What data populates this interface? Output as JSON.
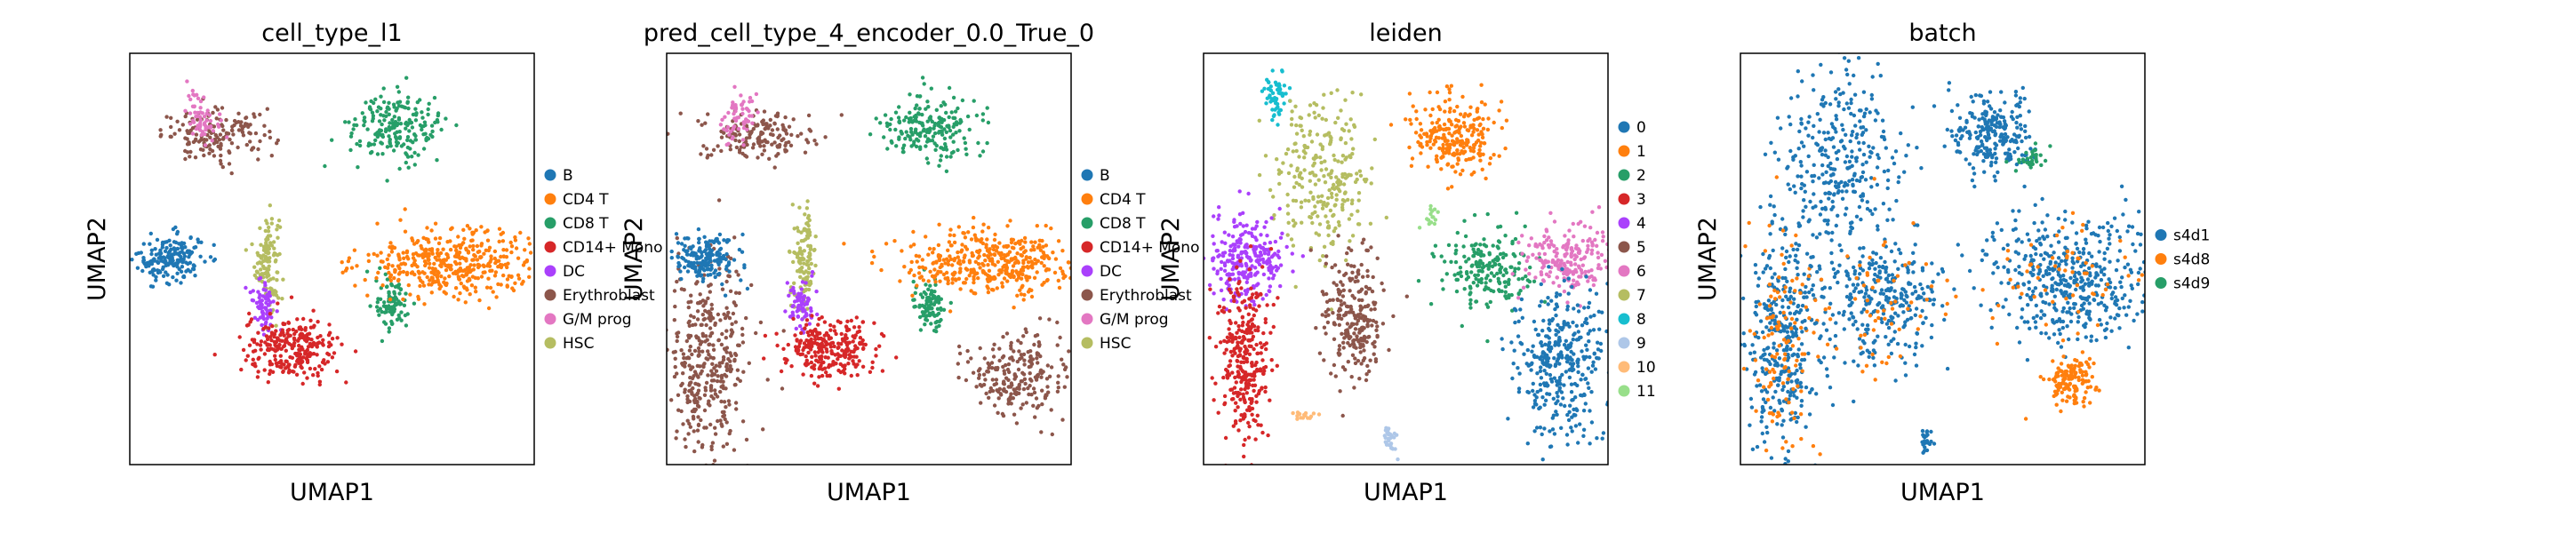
{
  "chart_data": [
    {
      "type": "scatter",
      "title": "cell_type_l1",
      "xlabel": "UMAP1",
      "ylabel": "UMAP2",
      "xlim": [
        0,
        100
      ],
      "ylim": [
        0,
        100
      ],
      "grid": false,
      "legend_position": "right",
      "legend": [
        {
          "label": "B",
          "color": "#1f77b4"
        },
        {
          "label": "CD4 T",
          "color": "#ff7f0e"
        },
        {
          "label": "CD8 T",
          "color": "#279e68"
        },
        {
          "label": "CD14+ Mono",
          "color": "#d62728"
        },
        {
          "label": "DC",
          "color": "#aa40fc"
        },
        {
          "label": "Erythroblast",
          "color": "#8c564b"
        },
        {
          "label": "G/M prog",
          "color": "#e377c2"
        },
        {
          "label": "HSC",
          "color": "#b5bd61"
        }
      ],
      "clusters": [
        {
          "category": "HSC",
          "x": 34,
          "y": 50,
          "spread": [
            1.5,
            6
          ],
          "n": 120
        },
        {
          "category": "Erythroblast",
          "x": 22,
          "y": 80,
          "spread": [
            7,
            3
          ],
          "n": 160
        },
        {
          "category": "G/M prog",
          "x": 18,
          "y": 85,
          "spread": [
            2,
            3
          ],
          "n": 60
        },
        {
          "category": "B",
          "x": 10,
          "y": 50,
          "spread": [
            4,
            3
          ],
          "n": 180
        },
        {
          "category": "DC",
          "x": 33,
          "y": 39,
          "spread": [
            1.5,
            3
          ],
          "n": 70
        },
        {
          "category": "CD14+ Mono",
          "x": 40,
          "y": 28,
          "spread": [
            6,
            4
          ],
          "n": 260
        },
        {
          "category": "CD8 T",
          "x": 65,
          "y": 39,
          "spread": [
            2,
            3
          ],
          "n": 90
        },
        {
          "category": "CD4 T",
          "x": 80,
          "y": 49,
          "spread": [
            11,
            4
          ],
          "n": 420
        },
        {
          "category": "CD8 T",
          "x": 66,
          "y": 82,
          "spread": [
            6,
            4
          ],
          "n": 200
        }
      ]
    },
    {
      "type": "scatter",
      "title": "pred_cell_type_4_encoder_0.0_True_0",
      "xlabel": "UMAP1",
      "ylabel": "UMAP2",
      "xlim": [
        0,
        100
      ],
      "ylim": [
        0,
        100
      ],
      "grid": false,
      "legend_position": "right",
      "legend": [
        {
          "label": "B",
          "color": "#1f77b4"
        },
        {
          "label": "CD4 T",
          "color": "#ff7f0e"
        },
        {
          "label": "CD8 T",
          "color": "#279e68"
        },
        {
          "label": "CD14+ Mono",
          "color": "#d62728"
        },
        {
          "label": "DC",
          "color": "#aa40fc"
        },
        {
          "label": "Erythroblast",
          "color": "#8c564b"
        },
        {
          "label": "G/M prog",
          "color": "#e377c2"
        },
        {
          "label": "HSC",
          "color": "#b5bd61"
        }
      ],
      "clusters": [
        {
          "category": "HSC",
          "x": 34,
          "y": 50,
          "spread": [
            1.5,
            6
          ],
          "n": 120
        },
        {
          "category": "Erythroblast",
          "x": 22,
          "y": 80,
          "spread": [
            7,
            3
          ],
          "n": 160
        },
        {
          "category": "Erythroblast",
          "x": 10,
          "y": 25,
          "spread": [
            5,
            12
          ],
          "n": 380
        },
        {
          "category": "Erythroblast",
          "x": 87,
          "y": 22,
          "spread": [
            6,
            5
          ],
          "n": 220
        },
        {
          "category": "G/M prog",
          "x": 18,
          "y": 85,
          "spread": [
            2,
            3
          ],
          "n": 60
        },
        {
          "category": "B",
          "x": 10,
          "y": 50,
          "spread": [
            4,
            3
          ],
          "n": 180
        },
        {
          "category": "DC",
          "x": 33,
          "y": 39,
          "spread": [
            1.5,
            3
          ],
          "n": 70
        },
        {
          "category": "CD14+ Mono",
          "x": 40,
          "y": 28,
          "spread": [
            6,
            4
          ],
          "n": 260
        },
        {
          "category": "CD8 T",
          "x": 65,
          "y": 39,
          "spread": [
            2,
            3
          ],
          "n": 90
        },
        {
          "category": "CD4 T",
          "x": 80,
          "y": 49,
          "spread": [
            11,
            4
          ],
          "n": 420
        },
        {
          "category": "CD8 T",
          "x": 66,
          "y": 82,
          "spread": [
            6,
            4
          ],
          "n": 200
        }
      ]
    },
    {
      "type": "scatter",
      "title": "leiden",
      "xlabel": "UMAP1",
      "ylabel": "UMAP2",
      "xlim": [
        0,
        100
      ],
      "ylim": [
        0,
        100
      ],
      "grid": false,
      "legend_position": "right",
      "legend": [
        {
          "label": "0",
          "color": "#1f77b4"
        },
        {
          "label": "1",
          "color": "#ff7f0e"
        },
        {
          "label": "2",
          "color": "#279e68"
        },
        {
          "label": "3",
          "color": "#d62728"
        },
        {
          "label": "4",
          "color": "#aa40fc"
        },
        {
          "label": "5",
          "color": "#8c564b"
        },
        {
          "label": "6",
          "color": "#e377c2"
        },
        {
          "label": "7",
          "color": "#b5bd61"
        },
        {
          "label": "8",
          "color": "#17becf"
        },
        {
          "label": "9",
          "color": "#aec7e8"
        },
        {
          "label": "10",
          "color": "#ffbb78"
        },
        {
          "label": "11",
          "color": "#98df8a"
        }
      ],
      "clusters": [
        {
          "category": "8",
          "x": 18,
          "y": 90,
          "spread": [
            1.5,
            3
          ],
          "n": 60
        },
        {
          "category": "7",
          "x": 30,
          "y": 70,
          "spread": [
            6,
            10
          ],
          "n": 260
        },
        {
          "category": "4",
          "x": 10,
          "y": 50,
          "spread": [
            5,
            5
          ],
          "n": 260
        },
        {
          "category": "3",
          "x": 10,
          "y": 25,
          "spread": [
            3,
            10
          ],
          "n": 320
        },
        {
          "category": "5",
          "x": 37,
          "y": 35,
          "spread": [
            4,
            8
          ],
          "n": 240
        },
        {
          "category": "1",
          "x": 62,
          "y": 80,
          "spread": [
            5,
            5
          ],
          "n": 240
        },
        {
          "category": "2",
          "x": 70,
          "y": 47,
          "spread": [
            6,
            5
          ],
          "n": 200
        },
        {
          "category": "6",
          "x": 90,
          "y": 50,
          "spread": [
            6,
            4
          ],
          "n": 220
        },
        {
          "category": "0",
          "x": 88,
          "y": 25,
          "spread": [
            6,
            10
          ],
          "n": 360
        },
        {
          "category": "9",
          "x": 46,
          "y": 6,
          "spread": [
            0.8,
            1.5
          ],
          "n": 30
        },
        {
          "category": "10",
          "x": 24,
          "y": 12,
          "spread": [
            1.5,
            0.5
          ],
          "n": 15
        },
        {
          "category": "11",
          "x": 56,
          "y": 60,
          "spread": [
            1.5,
            1.5
          ],
          "n": 15
        }
      ]
    },
    {
      "type": "scatter",
      "title": "batch",
      "xlabel": "UMAP1",
      "ylabel": "UMAP2",
      "xlim": [
        0,
        100
      ],
      "ylim": [
        0,
        100
      ],
      "grid": false,
      "legend_position": "right",
      "legend": [
        {
          "label": "s4d1",
          "color": "#1f77b4"
        },
        {
          "label": "s4d8",
          "color": "#ff7f0e"
        },
        {
          "label": "s4d9",
          "color": "#279e68"
        }
      ],
      "clusters": [
        {
          "category": "s4d1",
          "x": 25,
          "y": 75,
          "spread": [
            8,
            12
          ],
          "n": 320
        },
        {
          "category": "s4d1",
          "x": 10,
          "y": 30,
          "spread": [
            5,
            14
          ],
          "n": 360
        },
        {
          "category": "s4d8",
          "x": 10,
          "y": 30,
          "spread": [
            5,
            14
          ],
          "n": 120
        },
        {
          "category": "s4d1",
          "x": 35,
          "y": 40,
          "spread": [
            8,
            8
          ],
          "n": 300
        },
        {
          "category": "s4d8",
          "x": 35,
          "y": 40,
          "spread": [
            8,
            8
          ],
          "n": 60
        },
        {
          "category": "s4d1",
          "x": 62,
          "y": 80,
          "spread": [
            5,
            5
          ],
          "n": 240
        },
        {
          "category": "s4d9",
          "x": 72,
          "y": 74,
          "spread": [
            2,
            2
          ],
          "n": 30
        },
        {
          "category": "s4d1",
          "x": 82,
          "y": 45,
          "spread": [
            10,
            8
          ],
          "n": 460
        },
        {
          "category": "s4d8",
          "x": 82,
          "y": 45,
          "spread": [
            10,
            8
          ],
          "n": 60
        },
        {
          "category": "s4d8",
          "x": 82,
          "y": 20,
          "spread": [
            3,
            3
          ],
          "n": 140
        },
        {
          "category": "s4d1",
          "x": 46,
          "y": 6,
          "spread": [
            0.8,
            1.5
          ],
          "n": 25
        }
      ]
    }
  ]
}
